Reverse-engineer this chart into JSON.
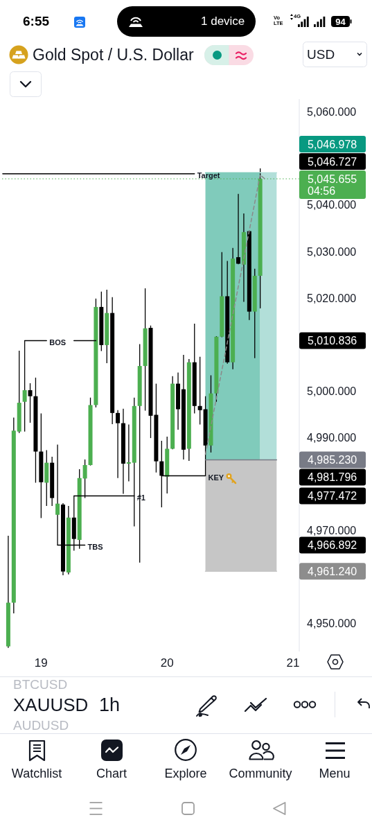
{
  "chart_data": {
    "type": "candlestick",
    "title": "Gold Spot / U.S. Dollar",
    "color": "#000000",
    "categories": [
      null,
      null,
      null,
      null,
      null,
      null,
      null,
      "19",
      null,
      null,
      null,
      null,
      null,
      null,
      null,
      null,
      null,
      null,
      null,
      null,
      null,
      null,
      null,
      null,
      null,
      null,
      null,
      null,
      null,
      null,
      "20",
      null,
      null,
      null,
      null,
      null,
      null,
      null,
      null,
      null,
      null,
      null,
      null,
      null,
      null,
      null,
      null,
      null,
      null,
      null,
      null,
      null,
      null,
      "21"
    ],
    "ohlc": [
      null,
      [
        4945.1,
        4968.9,
        4944.8,
        4954.5
      ],
      [
        4954.5,
        4994.3,
        4952.2,
        4991.5
      ],
      [
        4991.3,
        5008.7,
        4991.0,
        4997.5
      ],
      [
        4997.7,
        5010.8,
        4991.3,
        5000.2
      ],
      [
        5000.2,
        5001.7,
        4993.2,
        4998.9
      ],
      [
        4998.9,
        5002.9,
        4980.3,
        4987.0
      ],
      [
        4987.0,
        4995.2,
        4972.7,
        4980.4
      ],
      [
        4980.3,
        4987.3,
        4975.3,
        4984.6
      ],
      [
        4984.6,
        4985.9,
        4975.3,
        4977.0
      ],
      [
        4973.4,
        4988.5,
        4966.9,
        4975.8
      ],
      [
        4975.6,
        4975.9,
        4960.4,
        4961.2
      ],
      [
        4961.0,
        4975.3,
        4960.6,
        4972.8
      ],
      [
        4972.8,
        4977.5,
        4965.7,
        4968.2
      ],
      [
        4968.0,
        4983.2,
        4966.1,
        4981.3
      ],
      [
        4981.2,
        4985.3,
        4977.0,
        4984.1
      ],
      [
        4984.1,
        4998.6,
        4984.0,
        4997.0
      ],
      [
        4997.0,
        5019.9,
        4996.5,
        5018.1
      ],
      [
        5018.1,
        5021.4,
        5008.6,
        5009.9
      ],
      [
        5009.9,
        5021.8,
        5006.0,
        5016.8
      ],
      [
        5016.8,
        5020.2,
        4992.9,
        4995.3
      ],
      [
        4995.3,
        4995.9,
        4981.3,
        4993.1
      ],
      [
        4993.1,
        4996.2,
        4977.9,
        4984.4
      ],
      [
        4984.4,
        4992.8,
        4980.6,
        4984.7
      ],
      [
        4984.6,
        4998.6,
        4970.9,
        4996.8
      ],
      [
        4996.8,
        5010.1,
        4963.1,
        5005.4
      ],
      [
        5005.4,
        5022.1,
        4995.8,
        5013.5
      ],
      [
        5013.6,
        5014.1,
        4989.9,
        4994.7
      ],
      [
        4994.9,
        5001.6,
        4982.5,
        4984.9
      ],
      [
        4984.9,
        4989.3,
        4975.0,
        4981.8
      ],
      [
        4981.6,
        4990.2,
        4978.0,
        4987.6
      ],
      [
        4987.6,
        5003.2,
        4987.5,
        5001.6
      ],
      [
        5001.6,
        5004.0,
        4991.7,
        4996.1
      ],
      [
        5000.4,
        5007.8,
        4985.3,
        4987.4
      ],
      [
        4987.6,
        5006.9,
        4985.0,
        5006.2
      ],
      [
        5006.2,
        5014.5,
        4995.2,
        4996.8
      ],
      [
        4996.8,
        5007.4,
        4992.8,
        4995.9
      ],
      [
        4996.1,
        4998.9,
        4981.8,
        4988.3
      ],
      [
        4988.3,
        5003.4,
        4986.8,
        4999.5
      ],
      [
        4999.5,
        5011.8,
        4997.7,
        5011.7
      ],
      [
        5011.7,
        5029.9,
        5011.6,
        5020.4
      ],
      [
        5020.4,
        5028.0,
        5005.9,
        5006.2
      ],
      [
        5006.2,
        5030.8,
        5004.7,
        5028.5
      ],
      [
        5028.8,
        5042.4,
        5027.3,
        5027.4
      ],
      [
        5027.2,
        5038.2,
        5019.2,
        5034.2
      ],
      [
        5034.4,
        5034.5,
        5015.3,
        5017.1
      ],
      [
        5017.1,
        5026.3,
        5007.1,
        5024.8
      ],
      [
        5024.8,
        5047.9,
        5017.8,
        5045.655
      ],
      null,
      null,
      null,
      null,
      null,
      null
    ],
    "colors": [
      null,
      "#4caf50",
      "#4caf50",
      "#4caf50",
      "#4caf50",
      "#000000",
      "#000000",
      "#000000",
      "#4caf50",
      "#000000",
      "#4caf50",
      "#000000",
      "#4caf50",
      "#000000",
      "#4caf50",
      "#4caf50",
      "#4caf50",
      "#4caf50",
      "#000000",
      "#4caf50",
      "#000000",
      "#000000",
      "#000000",
      "#4caf50",
      "#4caf50",
      "#4caf50",
      "#4caf50",
      "#000000",
      "#000000",
      "#000000",
      "#4caf50",
      "#4caf50",
      "#000000",
      "#000000",
      "#4caf50",
      "#000000",
      "#000000",
      "#000000",
      "#4caf50",
      "#4caf50",
      "#4caf50",
      "#000000",
      "#4caf50",
      "#000000",
      "#4caf50",
      "#000000",
      "#4caf50",
      "#4caf50",
      null,
      null,
      null,
      null,
      null,
      null
    ],
    "series": [
      {
        "type": "line",
        "color": "#80cbbb",
        "values": [
          null,
          null,
          null,
          null,
          null,
          null,
          null,
          null,
          null,
          null,
          null,
          null,
          null,
          null,
          null,
          null,
          null,
          null,
          null,
          null,
          null,
          null,
          null,
          null,
          null,
          null,
          null,
          null,
          null,
          null,
          null,
          null,
          null,
          null,
          null,
          null,
          null,
          5046.978,
          5046.978,
          5046.978,
          5046.978,
          5046.978,
          5046.978,
          5046.978,
          5046.978,
          5046.978,
          5046.978,
          5046.978,
          null,
          null,
          null,
          null,
          null,
          null
        ],
        "lower": [
          null,
          null,
          null,
          null,
          null,
          null,
          null,
          null,
          null,
          null,
          null,
          null,
          null,
          null,
          null,
          null,
          null,
          null,
          null,
          null,
          null,
          null,
          null,
          null,
          null,
          null,
          null,
          null,
          null,
          null,
          null,
          null,
          null,
          null,
          null,
          null,
          null,
          4985.23,
          4985.23,
          4985.23,
          4985.23,
          4985.23,
          4985.23,
          4985.23,
          4985.23,
          4985.23,
          4985.23,
          4985.23,
          null,
          null,
          null,
          null,
          null,
          null
        ],
        "upper": [
          null,
          null,
          null,
          null,
          null,
          null,
          null,
          null,
          null,
          null,
          null,
          null,
          null,
          null,
          null,
          null,
          null,
          null,
          null,
          null,
          null,
          null,
          null,
          null,
          null,
          null,
          null,
          null,
          null,
          null,
          null,
          null,
          null,
          null,
          null,
          null,
          null,
          5046.978,
          5046.978,
          5046.978,
          5046.978,
          5046.978,
          5046.978,
          5046.978,
          5046.978,
          5046.978,
          5046.978,
          5046.978,
          null,
          null,
          null,
          null,
          null,
          null
        ]
      },
      {
        "type": "line",
        "color": "#b2dfd9",
        "values": [
          null,
          null,
          null,
          null,
          null,
          null,
          null,
          null,
          null,
          null,
          null,
          null,
          null,
          null,
          null,
          null,
          null,
          null,
          null,
          null,
          null,
          null,
          null,
          null,
          null,
          null,
          null,
          null,
          null,
          null,
          null,
          null,
          null,
          null,
          null,
          null,
          null,
          null,
          null,
          null,
          null,
          null,
          null,
          null,
          null,
          null,
          null,
          5046.978,
          5046.978,
          5046.978,
          5046.978,
          null,
          null,
          null
        ],
        "lower": [
          null,
          null,
          null,
          null,
          null,
          null,
          null,
          null,
          null,
          null,
          null,
          null,
          null,
          null,
          null,
          null,
          null,
          null,
          null,
          null,
          null,
          null,
          null,
          null,
          null,
          null,
          null,
          null,
          null,
          null,
          null,
          null,
          null,
          null,
          null,
          null,
          null,
          null,
          null,
          null,
          null,
          null,
          null,
          null,
          null,
          null,
          null,
          4985.23,
          4985.23,
          4985.23,
          4985.23,
          null,
          null,
          null
        ],
        "upper": [
          null,
          null,
          null,
          null,
          null,
          null,
          null,
          null,
          null,
          null,
          null,
          null,
          null,
          null,
          null,
          null,
          null,
          null,
          null,
          null,
          null,
          null,
          null,
          null,
          null,
          null,
          null,
          null,
          null,
          null,
          null,
          null,
          null,
          null,
          null,
          null,
          null,
          null,
          null,
          null,
          null,
          null,
          null,
          null,
          null,
          null,
          null,
          5046.978,
          5046.978,
          5046.978,
          5046.978,
          null,
          null,
          null
        ]
      },
      {
        "type": "line",
        "color": "#c6c6c6",
        "values": [
          null,
          null,
          null,
          null,
          null,
          null,
          null,
          null,
          null,
          null,
          null,
          null,
          null,
          null,
          null,
          null,
          null,
          null,
          null,
          null,
          null,
          null,
          null,
          null,
          null,
          null,
          null,
          null,
          null,
          null,
          null,
          null,
          null,
          null,
          null,
          null,
          null,
          4961.24,
          4961.24,
          4961.24,
          4961.24,
          4961.24,
          4961.24,
          4961.24,
          4961.24,
          4961.24,
          4961.24,
          4961.24,
          4961.24,
          4961.24,
          4961.24,
          null,
          null,
          null
        ],
        "lower": [
          null,
          null,
          null,
          null,
          null,
          null,
          null,
          null,
          null,
          null,
          null,
          null,
          null,
          null,
          null,
          null,
          null,
          null,
          null,
          null,
          null,
          null,
          null,
          null,
          null,
          null,
          null,
          null,
          null,
          null,
          null,
          null,
          null,
          null,
          null,
          null,
          null,
          4961.24,
          4961.24,
          4961.24,
          4961.24,
          4961.24,
          4961.24,
          4961.24,
          4961.24,
          4961.24,
          4961.24,
          4961.24,
          4961.24,
          4961.24,
          4961.24,
          null,
          null,
          null
        ],
        "upper": [
          null,
          null,
          null,
          null,
          null,
          null,
          null,
          null,
          null,
          null,
          null,
          null,
          null,
          null,
          null,
          null,
          null,
          null,
          null,
          null,
          null,
          null,
          null,
          null,
          null,
          null,
          null,
          null,
          null,
          null,
          null,
          null,
          null,
          null,
          null,
          null,
          null,
          4985.23,
          4985.23,
          4985.23,
          4985.23,
          4985.23,
          4985.23,
          4985.23,
          4985.23,
          4985.23,
          4985.23,
          4985.23,
          4985.23,
          4985.23,
          4985.23,
          null,
          null,
          null
        ]
      },
      {
        "type": "line",
        "color": "#787b86",
        "values": [
          null,
          null,
          null,
          null,
          null,
          null,
          null,
          null,
          null,
          null,
          null,
          null,
          null,
          null,
          null,
          null,
          null,
          null,
          null,
          null,
          null,
          null,
          null,
          null,
          null,
          null,
          null,
          null,
          null,
          null,
          null,
          null,
          null,
          null,
          null,
          null,
          null,
          4985.23,
          4985.23,
          4985.23,
          4985.23,
          4985.23,
          4985.23,
          4985.23,
          4985.23,
          4985.23,
          4985.23,
          4985.23,
          4985.23,
          4985.23,
          4985.23,
          null,
          null,
          null
        ]
      },
      {
        "type": "line",
        "name": "Target",
        "color": "#000000",
        "values": [
          5046.727,
          5046.727,
          5046.727,
          5046.727,
          5046.727,
          5046.727,
          5046.727,
          5046.727,
          5046.727,
          5046.727,
          5046.727,
          5046.727,
          5046.727,
          5046.727,
          5046.727,
          5046.727,
          5046.727,
          5046.727,
          5046.727,
          5046.727,
          5046.727,
          5046.727,
          5046.727,
          5046.727,
          5046.727,
          5046.727,
          5046.727,
          5046.727,
          5046.727,
          5046.727,
          5046.727,
          5046.727,
          5046.727,
          5046.727,
          5046.727,
          5046.727,
          null,
          null,
          null,
          null,
          null,
          null,
          null,
          null,
          null,
          null,
          null,
          null,
          null,
          null,
          null,
          null,
          null,
          null
        ]
      },
      {
        "type": "line",
        "name": "BOS",
        "color": "#000000",
        "values": [
          null,
          null,
          null,
          null,
          5010.836,
          5010.836,
          5010.836,
          5010.836,
          5010.836,
          null,
          null,
          null,
          null,
          null,
          null,
          null,
          null,
          null,
          null,
          null,
          null,
          null,
          null,
          null,
          null,
          null,
          null,
          null,
          null,
          null,
          null,
          null,
          null,
          null,
          null,
          null,
          null,
          null,
          null,
          null,
          null,
          null,
          null,
          null,
          null,
          null,
          null,
          null,
          null,
          null,
          null,
          null,
          null,
          null
        ]
      },
      {
        "type": "line",
        "color": "#000000",
        "values": [
          null,
          null,
          null,
          null,
          null,
          null,
          null,
          null,
          null,
          null,
          null,
          null,
          null,
          5010.836,
          5010.836,
          5010.836,
          5010.836,
          5010.836,
          null,
          null,
          null,
          null,
          null,
          null,
          null,
          null,
          null,
          null,
          null,
          null,
          null,
          null,
          null,
          null,
          null,
          null,
          null,
          null,
          null,
          null,
          null,
          null,
          null,
          null,
          null,
          null,
          null,
          null,
          null,
          null,
          null,
          null,
          null,
          null
        ]
      },
      {
        "type": "line",
        "name": "TBS",
        "color": "#000000",
        "values": [
          null,
          null,
          null,
          null,
          null,
          null,
          null,
          null,
          null,
          null,
          4966.892,
          4966.892,
          4966.892,
          4966.892,
          4966.892,
          4966.892,
          null,
          null,
          null,
          null,
          null,
          null,
          null,
          null,
          null,
          null,
          null,
          null,
          null,
          null,
          null,
          null,
          null,
          null,
          null,
          null,
          null,
          null,
          null,
          null,
          null,
          null,
          null,
          null,
          null,
          null,
          null,
          null,
          null,
          null,
          null,
          null,
          null,
          null
        ]
      },
      {
        "type": "line",
        "name": "#1",
        "color": "#000000",
        "values": [
          null,
          null,
          null,
          null,
          null,
          null,
          null,
          null,
          null,
          null,
          null,
          null,
          null,
          4977.472,
          4977.472,
          4977.472,
          4977.472,
          4977.472,
          4977.472,
          4977.472,
          4977.472,
          4977.472,
          4977.472,
          4977.472,
          4977.472,
          null,
          null,
          null,
          null,
          null,
          null,
          null,
          null,
          null,
          null,
          null,
          null,
          null,
          null,
          null,
          null,
          null,
          null,
          null,
          null,
          null,
          null,
          null,
          null,
          null,
          null,
          null,
          null,
          null
        ]
      },
      {
        "type": "line",
        "name": "KEY",
        "color": "#000000",
        "values": [
          null,
          null,
          null,
          null,
          null,
          null,
          null,
          null,
          null,
          null,
          null,
          null,
          null,
          null,
          null,
          null,
          null,
          null,
          null,
          null,
          null,
          null,
          null,
          null,
          null,
          null,
          null,
          null,
          null,
          4981.796,
          4981.796,
          4981.796,
          4981.796,
          4981.796,
          4981.796,
          4981.796,
          4981.796,
          4981.796,
          null,
          null,
          null,
          null,
          null,
          null,
          null,
          null,
          null,
          null,
          null,
          null,
          null,
          null,
          null,
          null
        ]
      },
      {
        "type": "line",
        "color": "#8a8a8a",
        "line_style": "dashed",
        "values": [
          null,
          null,
          null,
          null,
          null,
          null,
          null,
          null,
          null,
          null,
          null,
          null,
          null,
          null,
          null,
          null,
          null,
          null,
          null,
          null,
          null,
          null,
          null,
          null,
          null,
          null,
          null,
          null,
          null,
          null,
          null,
          null,
          null,
          null,
          null,
          null,
          null,
          4986.4,
          null,
          null,
          null,
          null,
          null,
          null,
          null,
          null,
          null,
          5046.5,
          5045.5,
          null,
          null,
          null,
          null,
          null
        ]
      }
    ],
    "ref_lines": [
      {
        "axis": "y",
        "value": 5045.655,
        "label": "5,045.655\n04:56",
        "color": "#4caf50",
        "line_style": "dotted"
      }
    ],
    "ylim": [
      4944.0,
      5062.8
    ],
    "yticks": [
      {
        "value": 4950,
        "label": "4,950.000"
      },
      {
        "value": 4961.24,
        "label": "4,961.240"
      },
      {
        "value": 4966.892,
        "label": "4,966.892"
      },
      {
        "value": 4970,
        "label": "4,970.000"
      },
      {
        "value": 4977.472,
        "label": "4,977.472"
      },
      {
        "value": 4981.796,
        "label": "4,981.796"
      },
      {
        "value": 4985.23,
        "label": "4,985.230"
      },
      {
        "value": 4990,
        "label": "4,990.000"
      },
      {
        "value": 5000,
        "label": "5,000.000"
      },
      {
        "value": 5010.836,
        "label": "5,010.836"
      },
      {
        "value": 5020,
        "label": "5,020.000"
      },
      {
        "value": 5030,
        "label": "5,030.000"
      },
      {
        "value": 5040,
        "label": "5,040.000"
      },
      {
        "value": 5060,
        "label": "5,060.000"
      }
    ],
    "annotations": [
      "6:55",
      "1 device",
      "Vo\nLTE",
      "4G",
      "94",
      "USD",
      "XAUUSD",
      "1h",
      "BTCUSD",
      "AUDUSD",
      "Watchlist",
      "Chart",
      "Explore",
      "Community",
      "Menu",
      "5,046.727",
      "5,046.978"
    ]
  }
}
